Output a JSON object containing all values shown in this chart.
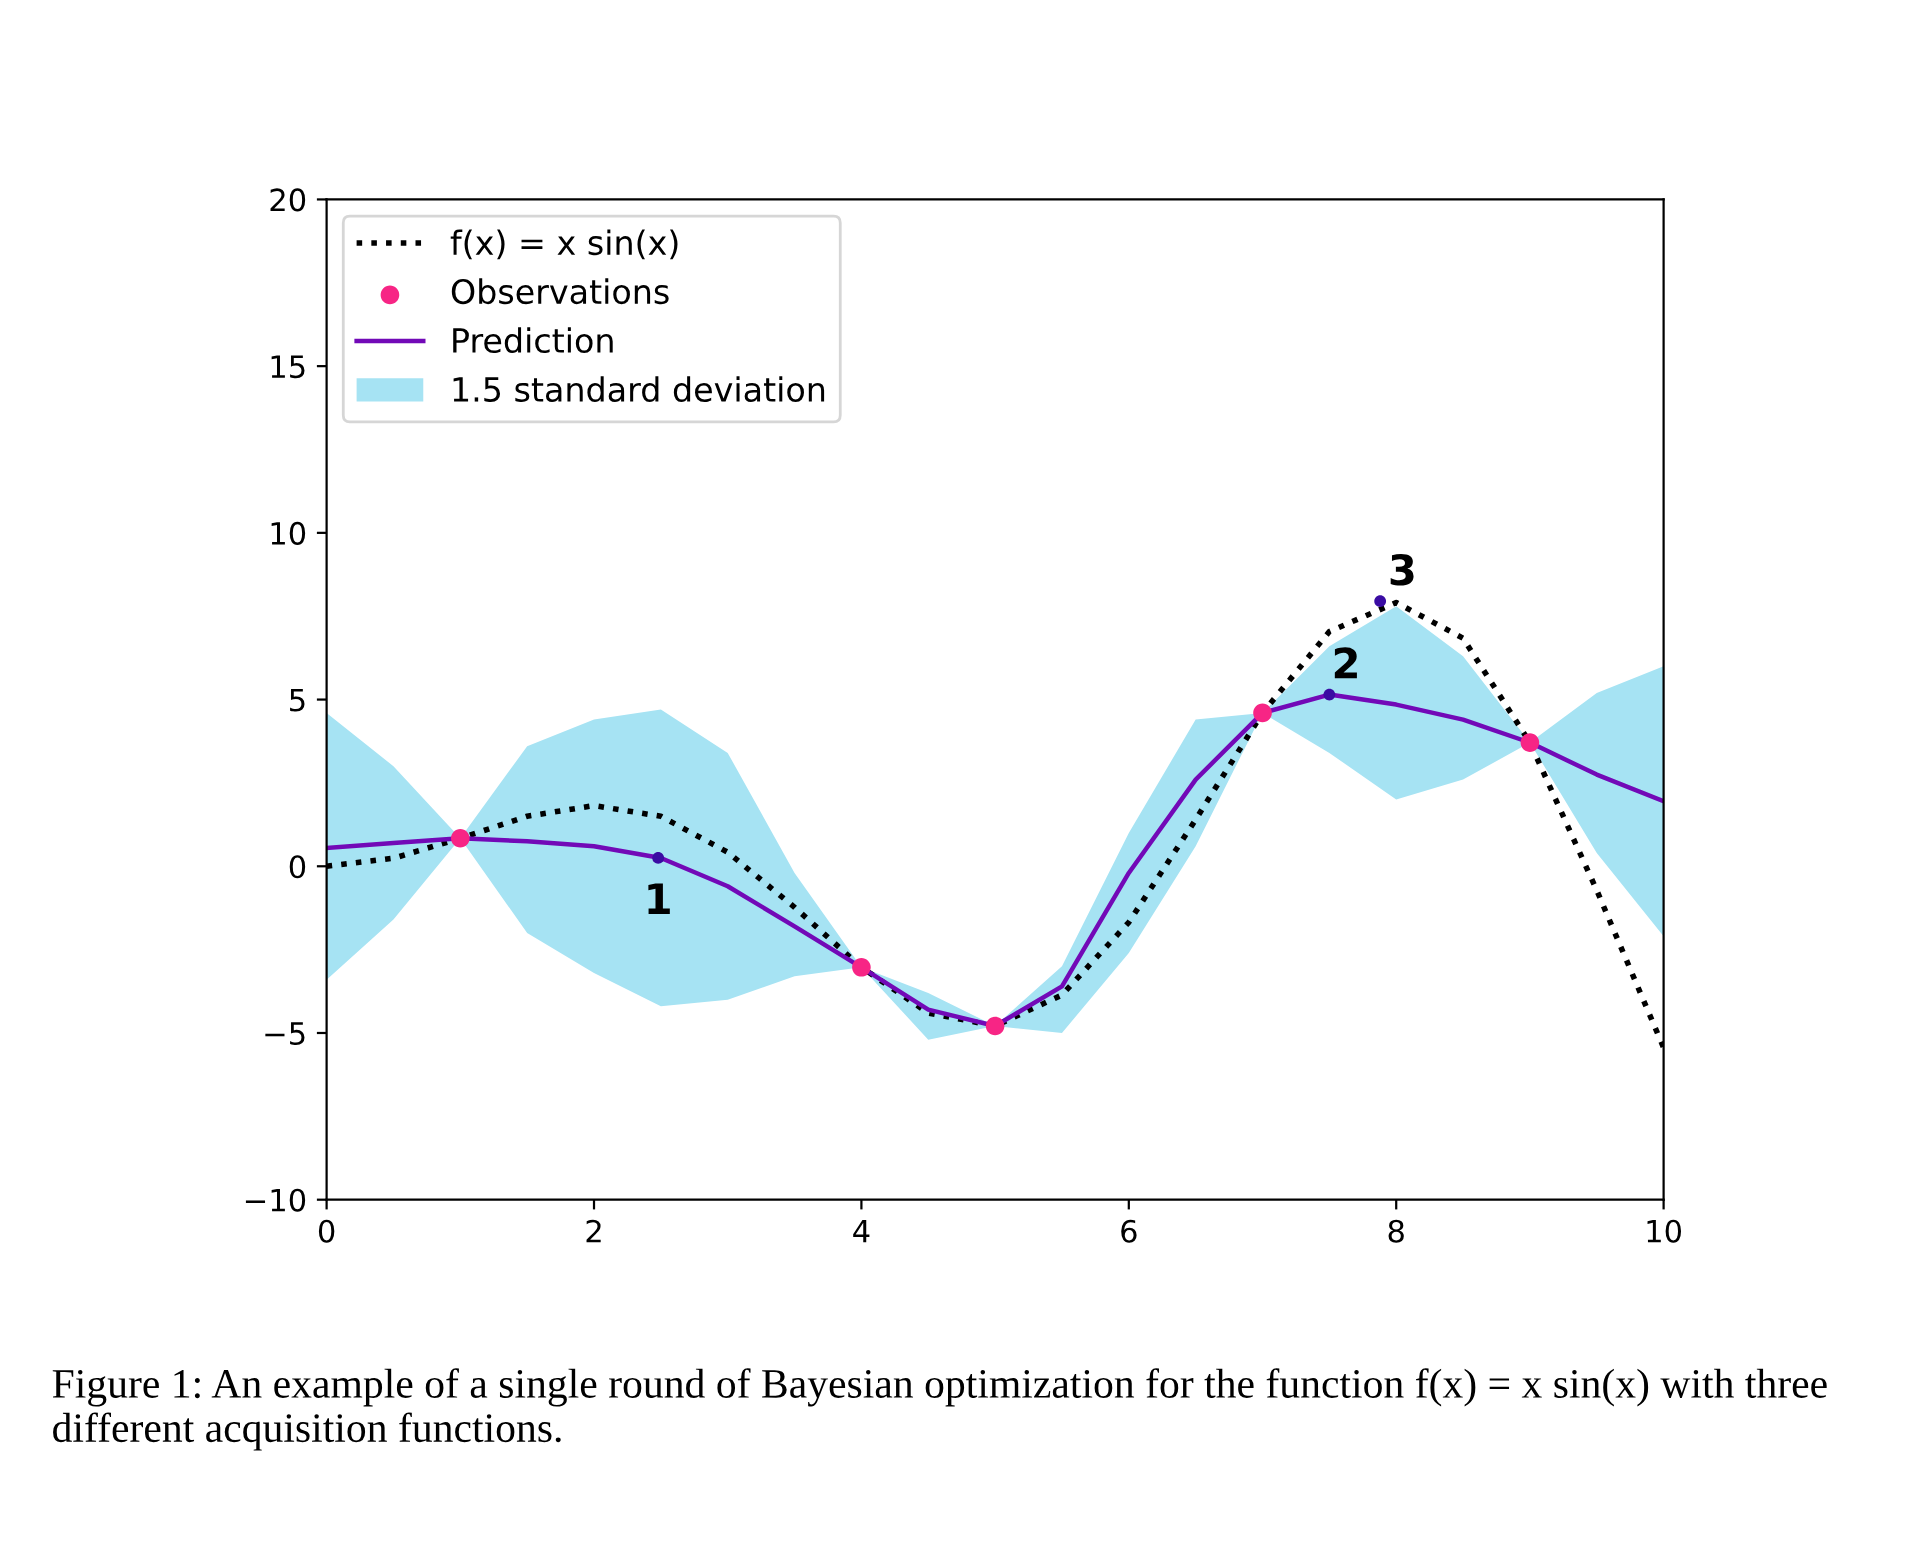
{
  "chart_data": {
    "type": "line",
    "x": [
      0,
      0.5,
      1,
      1.5,
      2,
      2.5,
      3,
      3.5,
      4,
      4.5,
      5,
      5.5,
      6,
      6.5,
      7,
      7.5,
      8,
      8.5,
      9,
      9.5,
      10
    ],
    "series": [
      {
        "name": "f(x) = x sin(x)",
        "color": "#000000",
        "line_style": "dotted",
        "values": [
          0,
          0.24,
          0.84,
          1.5,
          1.82,
          1.5,
          0.42,
          -1.23,
          -3.03,
          -4.4,
          -4.79,
          -3.86,
          -1.68,
          1.4,
          4.6,
          7.04,
          7.91,
          6.84,
          3.71,
          -0.72,
          -5.44
        ]
      },
      {
        "type": "scatter",
        "name": "Observations",
        "color": "#f72585",
        "marker": "circle",
        "x": [
          1,
          4,
          5,
          7,
          9
        ],
        "values": [
          0.84,
          -3.03,
          -4.79,
          4.6,
          3.71
        ]
      },
      {
        "type": "line",
        "name": "Prediction",
        "color": "#7209b7",
        "line_style": "solid",
        "values": [
          0.55,
          0.7,
          0.84,
          0.75,
          0.6,
          0.25,
          -0.6,
          -1.8,
          -3.03,
          -4.3,
          -4.79,
          -3.6,
          -0.2,
          2.6,
          4.6,
          5.15,
          4.85,
          4.4,
          3.71,
          2.75,
          1.95
        ],
        "lower": [
          -3.4,
          -1.6,
          0.84,
          -2.0,
          -3.2,
          -4.2,
          -4.0,
          -3.3,
          -3.03,
          -5.2,
          -4.79,
          -5.0,
          -2.6,
          0.6,
          4.6,
          3.4,
          2.0,
          2.6,
          3.71,
          0.4,
          -2.1
        ],
        "upper": [
          4.6,
          3.0,
          0.84,
          3.6,
          4.4,
          4.7,
          3.4,
          -0.2,
          -3.03,
          -3.8,
          -4.79,
          -3.0,
          1.0,
          4.4,
          4.6,
          6.6,
          7.8,
          6.3,
          3.71,
          5.2,
          6.0
        ]
      },
      {
        "type": "scatter",
        "color": "#3a0ca3",
        "marker": "circle",
        "x": [
          2.48,
          7.5,
          7.88
        ],
        "values": [
          0.25,
          5.15,
          7.95
        ]
      }
    ],
    "annotations": [
      {
        "text": "1",
        "x": 2.48,
        "y": 0.25
      },
      {
        "text": "2",
        "x": 7.5,
        "y": 5.15
      },
      {
        "text": "3",
        "x": 7.88,
        "y": 7.95
      },
      "1.5 standard deviation",
      "Figure 1: An example of a single round of Bayesian optimization for the function f(x) = x sin(x) with three different acquisition functions."
    ],
    "xlim": [
      0,
      10
    ],
    "xticks": [
      0,
      2,
      4,
      6,
      8,
      10
    ],
    "ylim": [
      -10,
      20
    ],
    "yticks": [
      {
        "value": -10,
        "label": "−10"
      },
      {
        "value": -5,
        "label": "−5"
      },
      0,
      5,
      10,
      15,
      20
    ],
    "grid": false,
    "legend": "top left"
  }
}
